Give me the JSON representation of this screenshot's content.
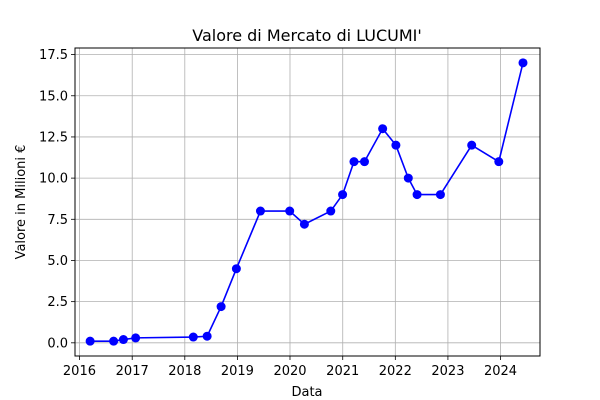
{
  "chart_data": {
    "type": "line",
    "title": "Valore di Mercato di LUCUMI'",
    "xlabel": "Data",
    "ylabel": "Valore in Milioni €",
    "grid": true,
    "marker": "circle",
    "color": "#0000ff",
    "x_ticks": [
      "2016",
      "2017",
      "2018",
      "2019",
      "2020",
      "2021",
      "2022",
      "2023",
      "2024"
    ],
    "y_ticks": [
      "0.0",
      "2.5",
      "5.0",
      "7.5",
      "10.0",
      "12.5",
      "15.0",
      "17.5"
    ],
    "xlim": [
      "2015-12-01",
      "2024-10-01"
    ],
    "ylim": [
      -0.8,
      17.9
    ],
    "series": [
      {
        "points": [
          {
            "x": "2016-03-15",
            "y": 0.1
          },
          {
            "x": "2016-08-25",
            "y": 0.1
          },
          {
            "x": "2016-11-01",
            "y": 0.2
          },
          {
            "x": "2017-01-25",
            "y": 0.3
          },
          {
            "x": "2018-03-01",
            "y": 0.35
          },
          {
            "x": "2018-06-05",
            "y": 0.4
          },
          {
            "x": "2018-09-10",
            "y": 2.2
          },
          {
            "x": "2018-12-25",
            "y": 4.5
          },
          {
            "x": "2019-06-10",
            "y": 8.0
          },
          {
            "x": "2019-12-30",
            "y": 8.0
          },
          {
            "x": "2020-04-10",
            "y": 7.2
          },
          {
            "x": "2020-10-10",
            "y": 8.0
          },
          {
            "x": "2020-12-31",
            "y": 9.0
          },
          {
            "x": "2021-03-20",
            "y": 11.0
          },
          {
            "x": "2021-06-01",
            "y": 11.0
          },
          {
            "x": "2021-10-05",
            "y": 13.0
          },
          {
            "x": "2022-01-05",
            "y": 12.0
          },
          {
            "x": "2022-04-01",
            "y": 10.0
          },
          {
            "x": "2022-06-01",
            "y": 9.0
          },
          {
            "x": "2022-11-10",
            "y": 9.0
          },
          {
            "x": "2023-06-15",
            "y": 12.0
          },
          {
            "x": "2023-12-20",
            "y": 11.0
          },
          {
            "x": "2024-06-05",
            "y": 17.0
          }
        ]
      }
    ]
  }
}
